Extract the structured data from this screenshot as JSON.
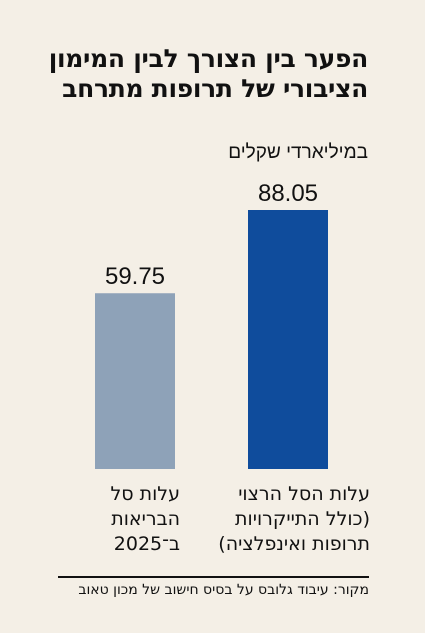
{
  "chart_data": {
    "type": "bar",
    "title": "הפער בין הצורך לבין המימון הציבורי של תרופות מתרחב",
    "subtitle": "במיליארדי שקלים",
    "categories": [
      "עלות הסל הרצוי\n(כולל התייקרויות\nתרופות ואינפלציה)",
      "עלות סל\nהבריאות\nב־2025"
    ],
    "values": [
      88.05,
      59.75
    ],
    "value_labels": [
      "88.05",
      "59.75"
    ],
    "bar_colors": [
      "#0f4c9c",
      "#8ea2b8"
    ],
    "ylim": [
      0,
      100
    ],
    "grid": false,
    "legend": "none"
  },
  "source": "מקור: עיבוד גלובס על בסיס חישוב של מכון טאוב"
}
